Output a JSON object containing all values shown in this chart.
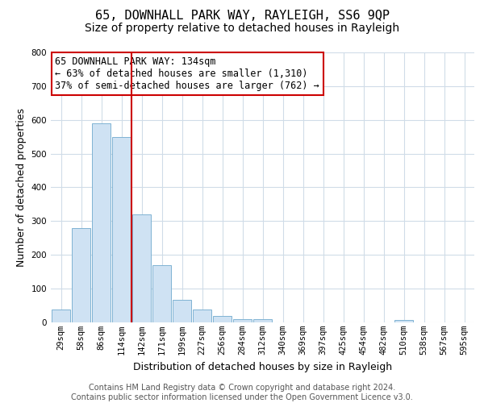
{
  "title": "65, DOWNHALL PARK WAY, RAYLEIGH, SS6 9QP",
  "subtitle": "Size of property relative to detached houses in Rayleigh",
  "xlabel": "Distribution of detached houses by size in Rayleigh",
  "ylabel": "Number of detached properties",
  "bar_labels": [
    "29sqm",
    "58sqm",
    "86sqm",
    "114sqm",
    "142sqm",
    "171sqm",
    "199sqm",
    "227sqm",
    "256sqm",
    "284sqm",
    "312sqm",
    "340sqm",
    "369sqm",
    "397sqm",
    "425sqm",
    "454sqm",
    "482sqm",
    "510sqm",
    "538sqm",
    "567sqm",
    "595sqm"
  ],
  "bar_values": [
    38,
    279,
    590,
    549,
    321,
    170,
    67,
    38,
    19,
    10,
    9,
    0,
    0,
    0,
    0,
    0,
    0,
    8,
    0,
    0,
    0
  ],
  "bar_color": "#cfe2f3",
  "bar_edge_color": "#7fb3d3",
  "vline_pos": 3.5,
  "vline_color": "#cc0000",
  "annotation_text": "65 DOWNHALL PARK WAY: 134sqm\n← 63% of detached houses are smaller (1,310)\n37% of semi-detached houses are larger (762) →",
  "annotation_box_color": "#ffffff",
  "annotation_box_edge": "#cc0000",
  "ylim": [
    0,
    800
  ],
  "yticks": [
    0,
    100,
    200,
    300,
    400,
    500,
    600,
    700,
    800
  ],
  "footer_text": "Contains HM Land Registry data © Crown copyright and database right 2024.\nContains public sector information licensed under the Open Government Licence v3.0.",
  "background_color": "#ffffff",
  "grid_color": "#d0dce8",
  "title_fontsize": 11,
  "subtitle_fontsize": 10,
  "axis_label_fontsize": 9,
  "tick_fontsize": 7.5,
  "annotation_fontsize": 8.5,
  "footer_fontsize": 7
}
